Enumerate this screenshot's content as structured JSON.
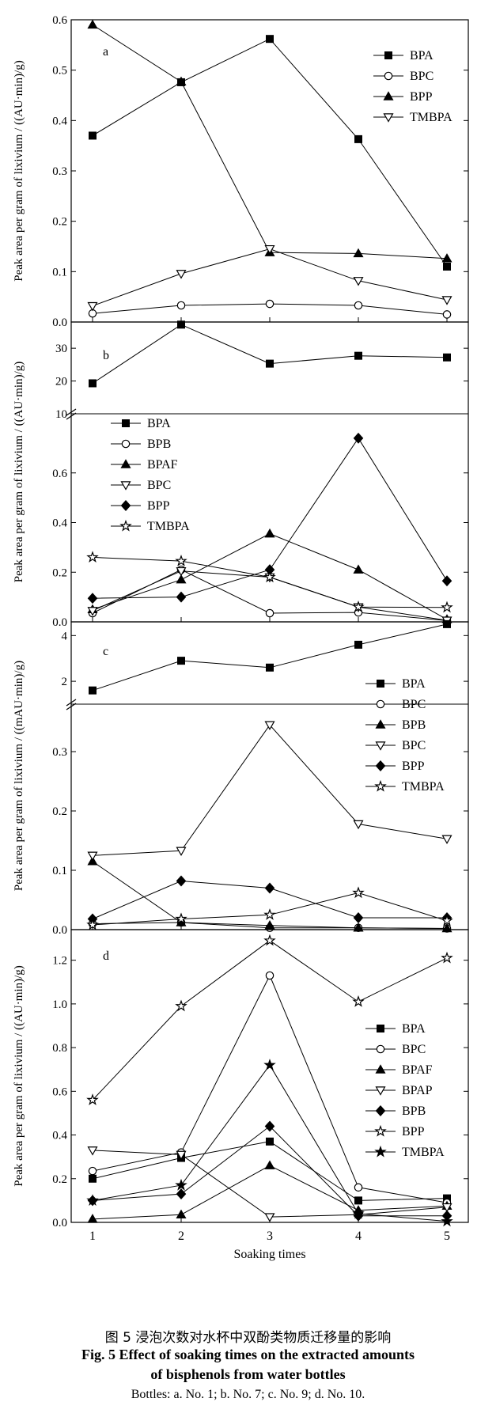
{
  "caption": {
    "cn": "图 5 浸泡次数对水杯中双酚类物质迁移量的影响",
    "en_line1": "Fig. 5 Effect of soaking times on the extracted amounts",
    "en_line2": "of bisphenols from water bottles",
    "notes": "Bottles: a. No. 1; b. No. 7; c. No. 9; d. No. 10."
  },
  "chart_data": {
    "type": "line",
    "shared_x": [
      1,
      2,
      3,
      4,
      5
    ],
    "xlabel": "Soaking times",
    "xticks": [
      "1",
      "2",
      "3",
      "4",
      "5"
    ],
    "panels": [
      {
        "label": "a",
        "ylabel": "Peak area per gram of lixivium / ((AU·min)/g)",
        "ylim": [
          0,
          0.6
        ],
        "yticks": [
          "0.0",
          "0.1",
          "0.2",
          "0.3",
          "0.4",
          "0.5",
          "0.6"
        ],
        "legend_position": "top-right",
        "series": [
          {
            "name": "BPA",
            "marker": "square-filled",
            "values": [
              0.37,
              0.476,
              0.562,
              0.363,
              0.11
            ]
          },
          {
            "name": "BPC",
            "marker": "circle-open",
            "values": [
              0.017,
              0.033,
              0.036,
              0.033,
              0.015
            ]
          },
          {
            "name": "BPP",
            "marker": "triangle-up-filled",
            "values": [
              0.59,
              0.477,
              0.138,
              0.136,
              0.126
            ]
          },
          {
            "name": "TMBPA",
            "marker": "triangle-down-open",
            "values": [
              0.032,
              0.096,
              0.145,
              0.082,
              0.044
            ]
          }
        ]
      },
      {
        "label": "b",
        "ylabel": "Peak area per gram of lixivium / ((AU·min)/g)",
        "broken_axis": true,
        "ylim_lower": [
          0,
          0.8
        ],
        "ylim_upper": [
          10,
          38
        ],
        "yticks_lower": [
          "0.0",
          "0.2",
          "0.4",
          "0.6"
        ],
        "yticks_upper": [
          "10",
          "20",
          "30"
        ],
        "legend_position": "middle-left",
        "series": [
          {
            "name": "BPA",
            "marker": "square-filled",
            "values": [
              19.3,
              37.2,
              25.3,
              27.7,
              27.2
            ]
          },
          {
            "name": "BPB",
            "marker": "circle-open",
            "values": [
              0.035,
              0.21,
              0.035,
              0.038,
              0.005
            ]
          },
          {
            "name": "BPAF",
            "marker": "triangle-up-filled",
            "values": [
              0.05,
              0.17,
              0.355,
              0.21,
              0.01
            ]
          },
          {
            "name": "BPC",
            "marker": "triangle-down-open",
            "values": [
              0.045,
              0.205,
              0.18,
              0.06,
              0.006
            ]
          },
          {
            "name": "BPP",
            "marker": "diamond-filled",
            "values": [
              0.095,
              0.1,
              0.21,
              0.74,
              0.165
            ]
          },
          {
            "name": "TMBPA",
            "marker": "star-open",
            "values": [
              0.26,
              0.245,
              0.18,
              0.06,
              0.058
            ]
          }
        ]
      },
      {
        "label": "c",
        "ylabel": "Peak area per gram of lixivium / ((mAU·min)/g)",
        "broken_axis": true,
        "ylim_lower": [
          0,
          0.36
        ],
        "ylim_upper": [
          1,
          4.6
        ],
        "yticks_lower": [
          "0.0",
          "0.1",
          "0.2",
          "0.3"
        ],
        "yticks_upper": [
          "2",
          "4"
        ],
        "legend_position": "right",
        "series": [
          {
            "name": "BPA",
            "marker": "square-filled",
            "values": [
              1.6,
              2.9,
              2.6,
              3.6,
              4.5
            ]
          },
          {
            "name": "BPC",
            "marker": "circle-open",
            "values": [
              0.01,
              0.012,
              0.003,
              0.003,
              0.002
            ]
          },
          {
            "name": "BPB",
            "marker": "triangle-up-filled",
            "values": [
              0.115,
              0.012,
              0.007,
              0.003,
              0.002
            ]
          },
          {
            "name": "BPC",
            "marker": "triangle-down-open",
            "values": [
              0.125,
              0.133,
              0.345,
              0.178,
              0.153
            ]
          },
          {
            "name": "BPP",
            "marker": "diamond-filled",
            "values": [
              0.018,
              0.082,
              0.07,
              0.02,
              0.02
            ]
          },
          {
            "name": "TMBPA",
            "marker": "star-open",
            "values": [
              0.008,
              0.018,
              0.025,
              0.062,
              0.015
            ]
          }
        ]
      },
      {
        "label": "d",
        "ylabel": "Peak area per gram of lixivium / ((AU·min)/g)",
        "ylim": [
          0,
          1.34
        ],
        "yticks": [
          "0.0",
          "0.2",
          "0.4",
          "0.6",
          "0.8",
          "1.0",
          "1.2"
        ],
        "legend_position": "right",
        "series": [
          {
            "name": "BPA",
            "marker": "square-filled",
            "values": [
              0.2,
              0.295,
              0.37,
              0.1,
              0.11
            ]
          },
          {
            "name": "BPC",
            "marker": "circle-open",
            "values": [
              0.235,
              0.32,
              1.13,
              0.16,
              0.09
            ]
          },
          {
            "name": "BPAF",
            "marker": "triangle-up-filled",
            "values": [
              0.015,
              0.035,
              0.26,
              0.055,
              0.075
            ]
          },
          {
            "name": "BPAP",
            "marker": "triangle-down-open",
            "values": [
              0.33,
              0.31,
              0.025,
              0.035,
              0.07
            ]
          },
          {
            "name": "BPB",
            "marker": "diamond-filled",
            "values": [
              0.1,
              0.13,
              0.44,
              0.03,
              0.03
            ]
          },
          {
            "name": "BPP",
            "marker": "star-open",
            "values": [
              0.56,
              0.99,
              1.29,
              1.01,
              1.21
            ]
          },
          {
            "name": "TMBPA",
            "marker": "star-filled",
            "values": [
              0.1,
              0.17,
              0.72,
              0.04,
              0.005
            ]
          }
        ]
      }
    ]
  }
}
